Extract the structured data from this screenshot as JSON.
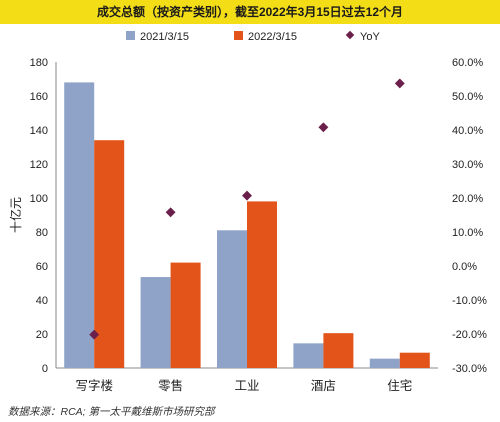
{
  "chart_data": {
    "type": "bar",
    "title": "成交总额（按资产类别），截至2022年3月15日过去12个月",
    "categories": [
      "写字楼",
      "零售",
      "工业",
      "酒店",
      "住宅"
    ],
    "series": [
      {
        "name": "2021/3/15",
        "kind": "bar",
        "color": "#8fa3c9",
        "values": [
          168,
          53.5,
          81,
          14.5,
          5.5
        ]
      },
      {
        "name": "2022/3/15",
        "kind": "bar",
        "color": "#e2541a",
        "values": [
          134,
          62,
          98,
          20.5,
          9
        ]
      },
      {
        "name": "YoY",
        "kind": "scatter",
        "axis": "right",
        "color": "#6b1f4b",
        "values": [
          -20.2,
          15.8,
          20.7,
          40.8,
          53.7
        ]
      }
    ],
    "ylabel": "十亿元",
    "ylim": [
      0,
      180
    ],
    "yticks": [
      "0",
      "20",
      "40",
      "60",
      "80",
      "100",
      "120",
      "140",
      "160",
      "180"
    ],
    "y2lim": [
      -30,
      60
    ],
    "y2ticks": [
      "-30.0%",
      "-20.0%",
      "-10.0%",
      "0.0%",
      "10.0%",
      "20.0%",
      "30.0%",
      "40.0%",
      "50.0%",
      "60.0%"
    ],
    "grid": false,
    "legend_position": "top"
  },
  "source_note": "数据来源：RCA; 第一太平戴维斯市场研究部"
}
